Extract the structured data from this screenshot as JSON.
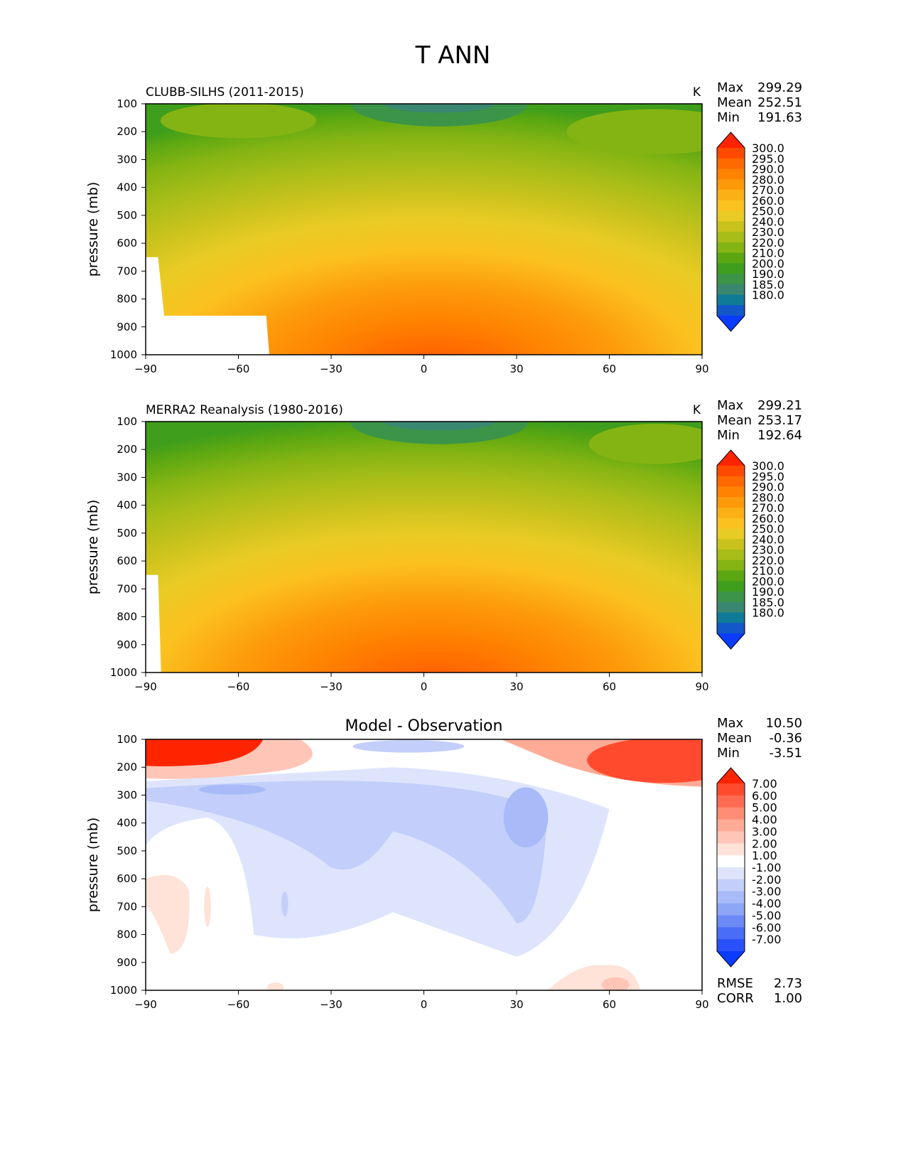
{
  "figure_title": "T ANN",
  "chart_data": [
    {
      "type": "heatmap",
      "subtype": "filled-contour latitude-pressure cross section",
      "title": "CLUBB-SILHS (2011-2015)",
      "units": "K",
      "ylabel": "pressure (mb)",
      "xlabel": "",
      "xlim": [
        -90,
        90
      ],
      "ylim": [
        1000,
        100
      ],
      "x_ticks": [
        "−90",
        "−60",
        "−30",
        "0",
        "30",
        "60",
        "90"
      ],
      "y_ticks": [
        "100",
        "200",
        "300",
        "400",
        "500",
        "600",
        "700",
        "800",
        "900",
        "1000"
      ],
      "stats": {
        "max_label": "Max",
        "max": "299.29",
        "mean_label": "Mean",
        "mean": "252.51",
        "min_label": "Min",
        "min": "191.63"
      },
      "colorbar_levels": [
        "300.0",
        "295.0",
        "290.0",
        "280.0",
        "270.0",
        "260.0",
        "250.0",
        "240.0",
        "230.0",
        "220.0",
        "210.0",
        "200.0",
        "190.0",
        "185.0",
        "180.0"
      ],
      "colorbar_colors": [
        "#ff2400",
        "#ff4a00",
        "#ff6a00",
        "#ff8200",
        "#fd9a0a",
        "#fbb116",
        "#fbc11f",
        "#e8cb24",
        "#c9c21d",
        "#a8bd18",
        "#84b413",
        "#5aa712",
        "#3f9e1c",
        "#3c9448",
        "#3a8771",
        "#0f7b97",
        "#1258c9",
        "#0a3cff"
      ],
      "missing_region": "white area over Antarctic topography (pressure > 850 mb, −90 to −50)"
    },
    {
      "type": "heatmap",
      "subtype": "filled-contour latitude-pressure cross section",
      "title": "MERRA2 Reanalysis (1980-2016)",
      "units": "K",
      "ylabel": "pressure (mb)",
      "xlabel": "",
      "xlim": [
        -90,
        90
      ],
      "ylim": [
        1000,
        100
      ],
      "x_ticks": [
        "−90",
        "−60",
        "−30",
        "0",
        "30",
        "60",
        "90"
      ],
      "y_ticks": [
        "100",
        "200",
        "300",
        "400",
        "500",
        "600",
        "700",
        "800",
        "900",
        "1000"
      ],
      "stats": {
        "max_label": "Max",
        "max": "299.21",
        "mean_label": "Mean",
        "mean": "253.17",
        "min_label": "Min",
        "min": "192.64"
      },
      "colorbar_levels": [
        "300.0",
        "295.0",
        "290.0",
        "280.0",
        "270.0",
        "260.0",
        "250.0",
        "240.0",
        "230.0",
        "220.0",
        "210.0",
        "200.0",
        "190.0",
        "185.0",
        "180.0"
      ],
      "colorbar_colors": [
        "#ff2400",
        "#ff4a00",
        "#ff6a00",
        "#ff8200",
        "#fd9a0a",
        "#fbb116",
        "#fbc11f",
        "#e8cb24",
        "#c9c21d",
        "#a8bd18",
        "#84b413",
        "#5aa712",
        "#3f9e1c",
        "#3c9448",
        "#3a8771",
        "#0f7b97",
        "#1258c9",
        "#0a3cff"
      ]
    },
    {
      "type": "heatmap",
      "subtype": "filled-contour difference",
      "title": "Model - Observation",
      "units": "",
      "ylabel": "pressure (mb)",
      "xlabel": "",
      "xlim": [
        -90,
        90
      ],
      "ylim": [
        1000,
        100
      ],
      "x_ticks": [
        "−90",
        "−60",
        "−30",
        "0",
        "30",
        "60",
        "90"
      ],
      "y_ticks": [
        "100",
        "200",
        "300",
        "400",
        "500",
        "600",
        "700",
        "800",
        "900",
        "1000"
      ],
      "stats": {
        "max_label": "Max",
        "max": "10.50",
        "mean_label": "Mean",
        "mean": "-0.36",
        "min_label": "Min",
        "min": "-3.51"
      },
      "rmse_label": "RMSE",
      "rmse": "2.73",
      "corr_label": "CORR",
      "corr": "1.00",
      "colorbar_levels": [
        "7.00",
        "6.00",
        "5.00",
        "4.00",
        "3.00",
        "2.00",
        "1.00",
        "-1.00",
        "-2.00",
        "-3.00",
        "-4.00",
        "-5.00",
        "-6.00",
        "-7.00"
      ],
      "colorbar_colors": [
        "#ff2400",
        "#ff4a2e",
        "#ff6a52",
        "#ff8c74",
        "#ffab96",
        "#ffc6b8",
        "#ffe2d8",
        "#ffffff",
        "#dde4fc",
        "#c3cffa",
        "#a8bbf8",
        "#8ea6f6",
        "#6b8af6",
        "#4a6df8",
        "#2a50fb",
        "#0a3cff"
      ]
    }
  ]
}
